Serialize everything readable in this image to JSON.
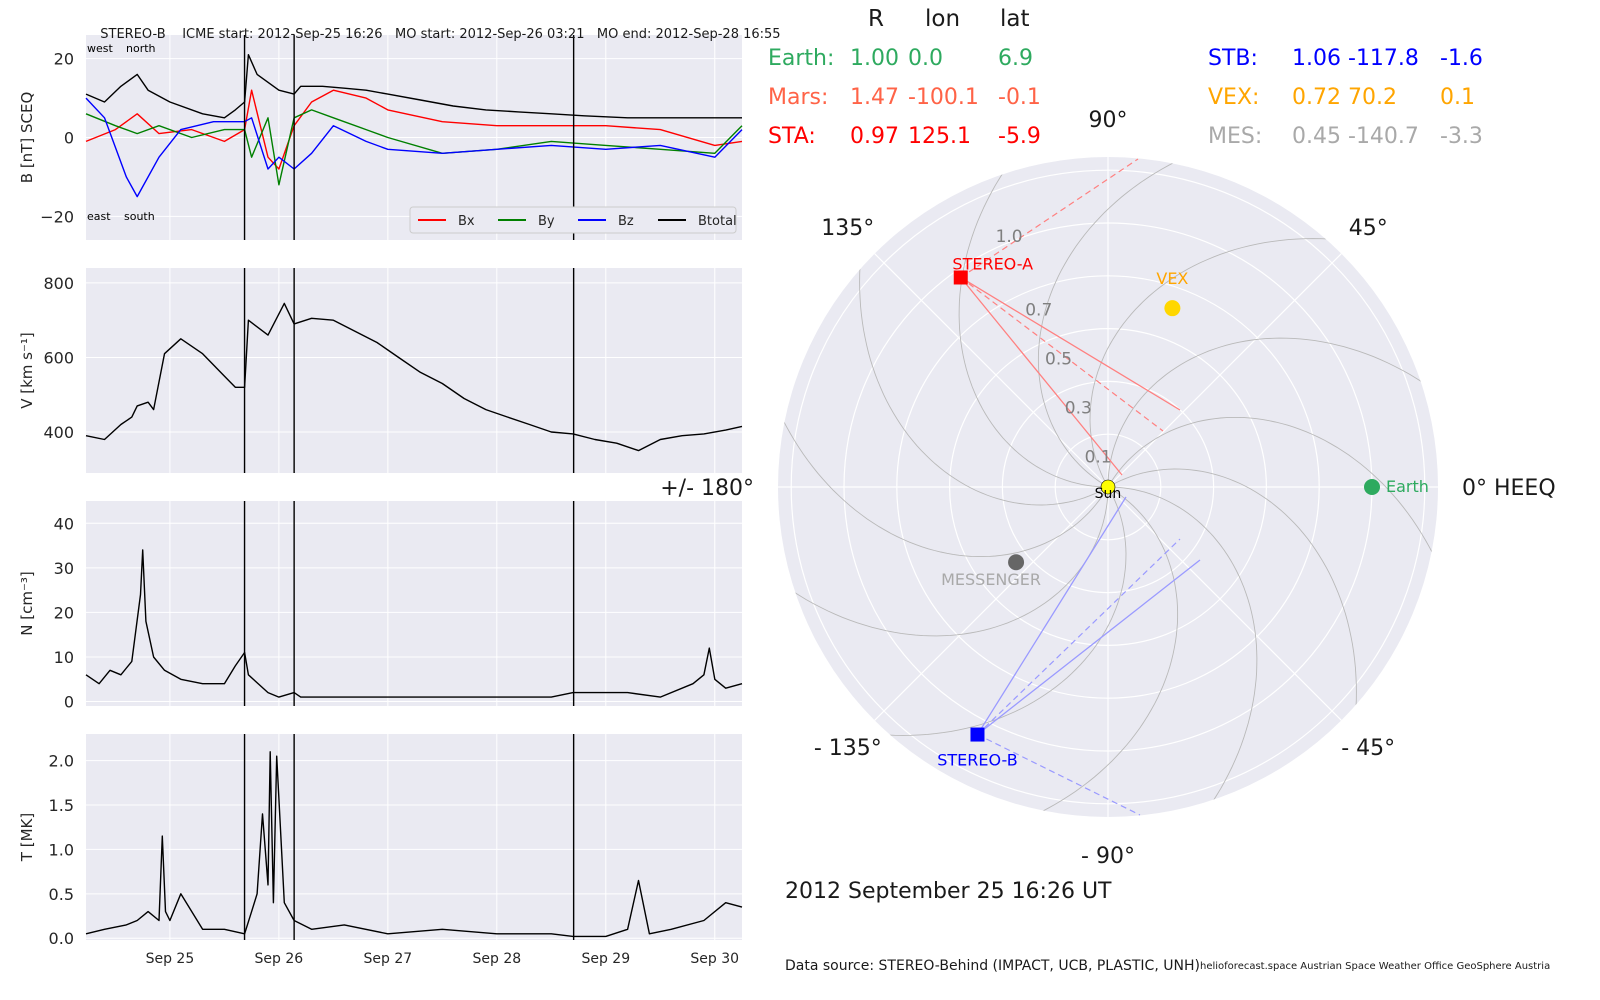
{
  "header": {
    "spacecraft": "STEREO-B",
    "icme_start": "ICME start: 2012-Sep-25 16:26",
    "mo_start": "MO start: 2012-Sep-26 03:21",
    "mo_end": "MO end: 2012-Sep-28 16:55"
  },
  "position_table": {
    "headers": [
      "R",
      "lon",
      "lat"
    ],
    "rows": [
      {
        "name": "Earth:",
        "R": "1.00",
        "lon": "0.0",
        "lat": "6.9",
        "color": "#2eaa5f",
        "column": "left"
      },
      {
        "name": "Mars:",
        "R": "1.47",
        "lon": "-100.1",
        "lat": "-0.1",
        "color": "#ff6347",
        "column": "left"
      },
      {
        "name": "STA:",
        "R": "0.97",
        "lon": "125.1",
        "lat": "-5.9",
        "color": "#ff0000",
        "column": "left"
      },
      {
        "name": "STB:",
        "R": "1.06",
        "lon": "-117.8",
        "lat": "-1.6",
        "color": "#0000ff",
        "column": "right"
      },
      {
        "name": "VEX:",
        "R": "0.72",
        "lon": "70.2",
        "lat": "0.1",
        "color": "#ffa500",
        "column": "right"
      },
      {
        "name": "MES:",
        "R": "0.45",
        "lon": "-140.7",
        "lat": "-3.3",
        "color": "#a9a9a9",
        "column": "right"
      }
    ]
  },
  "polar": {
    "angle_labels": [
      {
        "text": "90°",
        "deg": 90
      },
      {
        "text": "45°",
        "deg": 45
      },
      {
        "text": "0° HEEQ",
        "deg": 0
      },
      {
        "text": "- 45°",
        "deg": -45
      },
      {
        "text": "- 90°",
        "deg": -90
      },
      {
        "text": "- 135°",
        "deg": -135
      },
      {
        "text": "+/- 180°",
        "deg": 180
      },
      {
        "text": "135°",
        "deg": 135
      }
    ],
    "radial_labels": [
      "0.1",
      "0.3",
      "0.5",
      "0.7",
      "1.0"
    ],
    "radial_label_values": [
      0.1,
      0.3,
      0.5,
      0.7,
      1.0
    ],
    "rmax": 1.25,
    "bodies": [
      {
        "name": "Earth",
        "r": 1.0,
        "lon": 0.0,
        "color": "#2eaa5f",
        "marker": "circle"
      },
      {
        "name": "VEX",
        "r": 0.72,
        "lon": 70.2,
        "color": "#ffd700",
        "label_color": "#ffa500",
        "marker": "circle"
      },
      {
        "name": "STEREO-A",
        "r": 0.97,
        "lon": 125.1,
        "color": "#ff0000",
        "marker": "square"
      },
      {
        "name": "STEREO-B",
        "r": 1.06,
        "lon": -117.8,
        "color": "#0000ff",
        "marker": "square"
      },
      {
        "name": "MESSENGER",
        "r": 0.45,
        "lon": -140.7,
        "color": "#666666",
        "label_color": "#a9a9a9",
        "marker": "circle"
      },
      {
        "name": "Sun",
        "r": 0,
        "lon": 0,
        "color": "#ffff00",
        "marker": "sun"
      }
    ]
  },
  "date_label": "2012 September 25  16:26 UT",
  "footer": {
    "source": "Data source: STEREO-Behind (IMPACT, UCB, PLASTIC, UNH)",
    "credits": "helioforecast.space   Austrian Space Weather Office   GeoSphere Austria"
  },
  "chart_data": [
    {
      "type": "line",
      "panel": "B",
      "ylabel": "B [nT] SCEQ",
      "ylim": [
        -26,
        26
      ],
      "yticks": [
        -20,
        0,
        20
      ],
      "ytick_labels": [
        "−20",
        "0",
        "20"
      ],
      "annotations": [
        "west",
        "north",
        "east",
        "south"
      ],
      "legend": [
        "Bx",
        "By",
        "Bz",
        "Btotal"
      ],
      "legend_position": "lower-right",
      "x_unit": "days since 2012-Sep-24 00:00 (Sep 25 = 1)",
      "xlim": [
        0.23,
        6.25
      ],
      "event_lines": [
        1.685,
        2.14,
        4.705
      ],
      "series": [
        {
          "name": "Btotal",
          "color": "#000000",
          "x": [
            0.23,
            0.4,
            0.55,
            0.7,
            0.8,
            1.0,
            1.3,
            1.5,
            1.6,
            1.685,
            1.72,
            1.8,
            1.9,
            2.0,
            2.14,
            2.2,
            2.4,
            2.6,
            2.8,
            3.0,
            3.3,
            3.6,
            3.9,
            4.2,
            4.5,
            4.8,
            5.2,
            5.6,
            6.0,
            6.25
          ],
          "y": [
            11,
            9,
            13,
            16,
            12,
            9,
            6,
            5,
            7,
            9,
            21,
            16,
            14,
            12,
            11,
            13,
            13,
            12.5,
            12,
            11,
            9.5,
            8,
            7,
            6.5,
            6,
            5.5,
            5,
            5,
            5,
            5
          ]
        },
        {
          "name": "Bx",
          "color": "#ff0000",
          "x": [
            0.23,
            0.5,
            0.7,
            0.9,
            1.2,
            1.5,
            1.685,
            1.75,
            1.9,
            2.0,
            2.14,
            2.3,
            2.5,
            2.8,
            3.0,
            3.5,
            4.0,
            4.5,
            5.0,
            5.5,
            6.0,
            6.25
          ],
          "y": [
            -1,
            2,
            6,
            1,
            2,
            -1,
            2,
            12,
            -5,
            -8,
            3,
            9,
            12,
            10,
            7,
            4,
            3,
            3,
            3,
            2,
            -2,
            -1
          ]
        },
        {
          "name": "By",
          "color": "#008000",
          "x": [
            0.23,
            0.5,
            0.7,
            0.9,
            1.2,
            1.5,
            1.685,
            1.75,
            1.9,
            2.0,
            2.14,
            2.3,
            2.5,
            2.8,
            3.0,
            3.5,
            4.0,
            4.5,
            5.0,
            5.5,
            6.0,
            6.25
          ],
          "y": [
            6,
            3,
            1,
            3,
            0,
            2,
            2,
            -5,
            5,
            -12,
            5,
            7,
            5,
            2,
            0,
            -4,
            -3,
            -1,
            -2,
            -3,
            -4,
            3
          ]
        },
        {
          "name": "Bz",
          "color": "#0000ff",
          "x": [
            0.23,
            0.4,
            0.6,
            0.7,
            0.9,
            1.1,
            1.4,
            1.685,
            1.75,
            1.9,
            2.0,
            2.14,
            2.3,
            2.5,
            2.8,
            3.0,
            3.5,
            4.0,
            4.5,
            5.0,
            5.5,
            6.0,
            6.25
          ],
          "y": [
            10,
            5,
            -10,
            -15,
            -5,
            2,
            4,
            4,
            5,
            -8,
            -5,
            -8,
            -4,
            3,
            -1,
            -3,
            -4,
            -3,
            -2,
            -3,
            -2,
            -5,
            2
          ]
        }
      ]
    },
    {
      "type": "line",
      "panel": "V",
      "ylabel": "V [km s⁻¹]",
      "ylim": [
        290,
        840
      ],
      "yticks": [
        400,
        600,
        800
      ],
      "ytick_labels": [
        "400",
        "600",
        "800"
      ],
      "xlim": [
        0.23,
        6.25
      ],
      "event_lines": [
        1.685,
        2.14,
        4.705
      ],
      "series": [
        {
          "name": "V",
          "color": "#000000",
          "x": [
            0.23,
            0.4,
            0.55,
            0.65,
            0.7,
            0.8,
            0.85,
            0.95,
            1.1,
            1.3,
            1.5,
            1.6,
            1.685,
            1.72,
            1.9,
            2.05,
            2.14,
            2.3,
            2.5,
            2.7,
            2.9,
            3.1,
            3.3,
            3.5,
            3.7,
            3.9,
            4.1,
            4.3,
            4.5,
            4.7,
            4.9,
            5.1,
            5.3,
            5.5,
            5.7,
            5.9,
            6.1,
            6.25
          ],
          "y": [
            390,
            380,
            420,
            440,
            470,
            480,
            460,
            610,
            650,
            610,
            550,
            520,
            520,
            700,
            660,
            745,
            690,
            705,
            700,
            670,
            640,
            600,
            560,
            530,
            490,
            460,
            440,
            420,
            400,
            395,
            380,
            370,
            350,
            380,
            390,
            395,
            405,
            415
          ]
        }
      ]
    },
    {
      "type": "line",
      "panel": "N",
      "ylabel": "N [cm⁻³]",
      "ylim": [
        -1,
        45
      ],
      "yticks": [
        0,
        10,
        20,
        30,
        40
      ],
      "ytick_labels": [
        "0",
        "10",
        "20",
        "30",
        "40"
      ],
      "xlim": [
        0.23,
        6.25
      ],
      "event_lines": [
        1.685,
        2.14,
        4.705
      ],
      "series": [
        {
          "name": "N",
          "color": "#000000",
          "x": [
            0.23,
            0.35,
            0.45,
            0.55,
            0.65,
            0.73,
            0.75,
            0.78,
            0.85,
            0.95,
            1.1,
            1.3,
            1.5,
            1.6,
            1.685,
            1.72,
            1.9,
            2.0,
            2.14,
            2.2,
            2.5,
            3.0,
            3.5,
            4.0,
            4.5,
            4.7,
            4.9,
            5.2,
            5.5,
            5.8,
            5.9,
            5.95,
            6.0,
            6.1,
            6.25
          ],
          "y": [
            6,
            4,
            7,
            6,
            9,
            24,
            34,
            18,
            10,
            7,
            5,
            4,
            4,
            8,
            11,
            6,
            2,
            1,
            2,
            1,
            1,
            1,
            1,
            1,
            1,
            2,
            2,
            2,
            1,
            4,
            6,
            12,
            5,
            3,
            4
          ]
        }
      ]
    },
    {
      "type": "line",
      "panel": "T",
      "ylabel": "T [MK]",
      "ylim": [
        -0.02,
        2.3
      ],
      "yticks": [
        0.0,
        0.5,
        1.0,
        1.5,
        2.0
      ],
      "ytick_labels": [
        "0.0",
        "0.5",
        "1.0",
        "1.5",
        "2.0"
      ],
      "x_ticks": [
        1,
        2,
        3,
        4,
        5,
        6
      ],
      "x_tick_labels": [
        "Sep 25",
        "Sep 26",
        "Sep 27",
        "Sep 28",
        "Sep 29",
        "Sep 30"
      ],
      "xlim": [
        0.23,
        6.25
      ],
      "event_lines": [
        1.685,
        2.14,
        4.705
      ],
      "series": [
        {
          "name": "T",
          "color": "#000000",
          "x": [
            0.23,
            0.4,
            0.6,
            0.7,
            0.8,
            0.9,
            0.93,
            0.96,
            1.0,
            1.1,
            1.3,
            1.5,
            1.685,
            1.75,
            1.8,
            1.85,
            1.9,
            1.92,
            1.95,
            1.98,
            2.05,
            2.14,
            2.3,
            2.6,
            3.0,
            3.5,
            4.0,
            4.5,
            4.7,
            5.0,
            5.2,
            5.3,
            5.4,
            5.6,
            5.9,
            6.1,
            6.25
          ],
          "y": [
            0.05,
            0.1,
            0.15,
            0.2,
            0.3,
            0.2,
            1.15,
            0.3,
            0.2,
            0.5,
            0.1,
            0.1,
            0.05,
            0.3,
            0.5,
            1.4,
            0.6,
            2.1,
            0.4,
            2.05,
            0.4,
            0.2,
            0.1,
            0.15,
            0.05,
            0.1,
            0.05,
            0.05,
            0.02,
            0.02,
            0.1,
            0.65,
            0.05,
            0.1,
            0.2,
            0.4,
            0.35
          ]
        }
      ]
    }
  ]
}
